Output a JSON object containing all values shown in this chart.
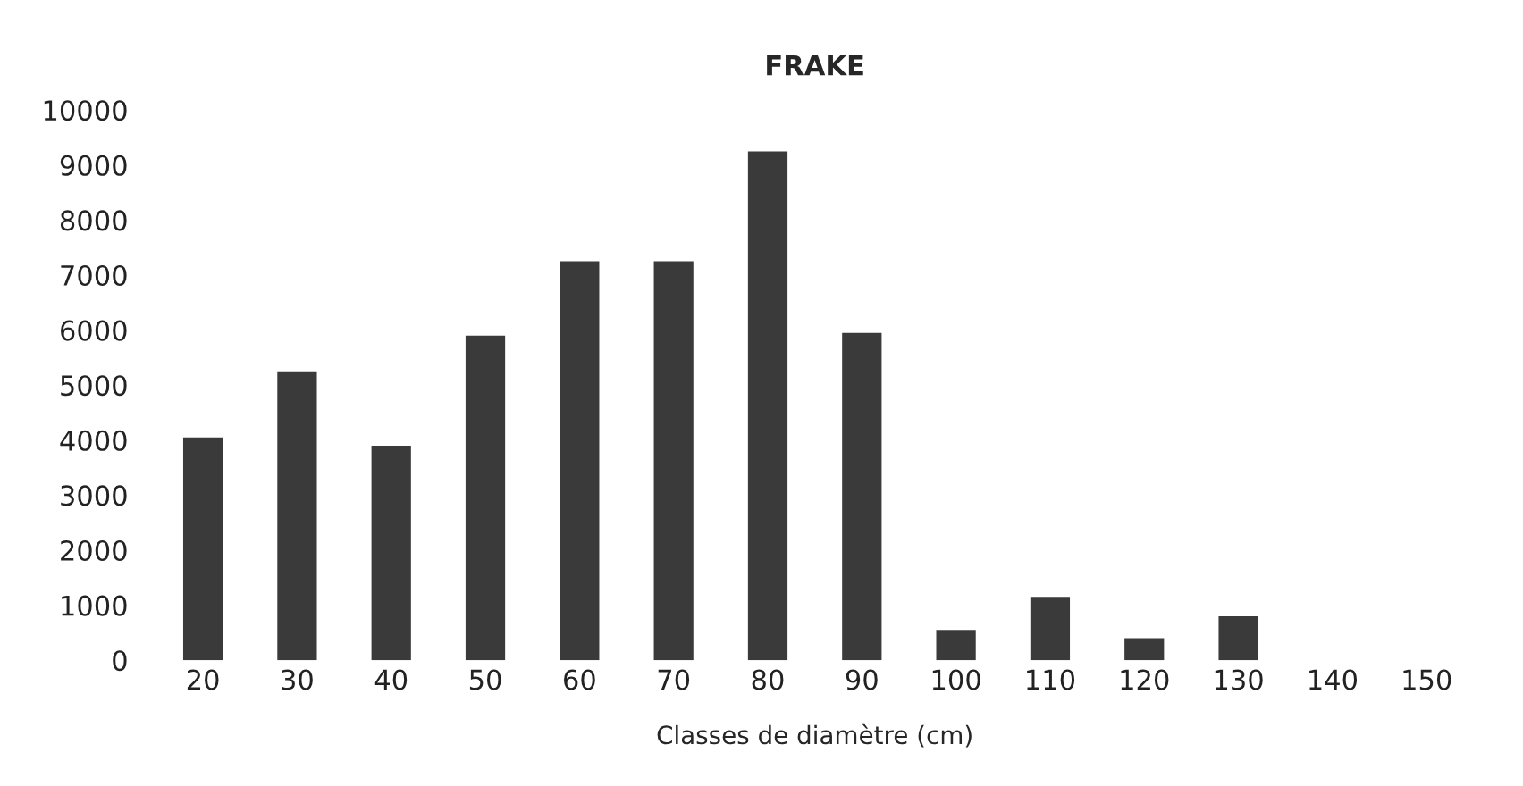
{
  "chart_data": {
    "type": "bar",
    "title": "FRAKE",
    "xlabel": "Classes de diamètre (cm)",
    "categories": [
      "20",
      "30",
      "40",
      "50",
      "60",
      "70",
      "80",
      "90",
      "100",
      "110",
      "120",
      "130",
      "140",
      "150"
    ],
    "values": [
      4050,
      5250,
      3900,
      5900,
      7250,
      7250,
      9250,
      5950,
      550,
      1150,
      400,
      800,
      0,
      0
    ],
    "color": "#3a3a3a",
    "ylim": [
      0,
      10000
    ],
    "yticks": [
      0,
      1000,
      2000,
      3000,
      4000,
      5000,
      6000,
      7000,
      8000,
      9000,
      10000
    ],
    "grid": false
  }
}
